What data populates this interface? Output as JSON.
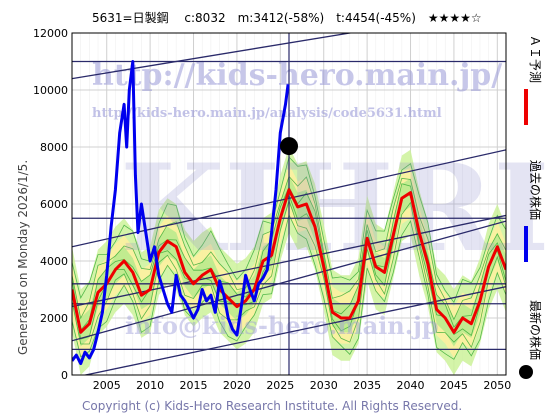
{
  "chart_data": {
    "type": "line",
    "title": "5631=日製鋼　 c:8032　m:3412(-58%)　t:4454(-45%)　★★★★☆",
    "ylabel": "Generated on Monday 2026/1/5.",
    "footer": "Copyright (c) Kids-Hero Research Institute. All Rights Reserved.",
    "watermark": {
      "url": "http://kids-hero.main.jp/",
      "analysis_url": "http://kids-hero.main.jp/analysis/code5631.html",
      "big": "KIHRI",
      "mail": "info@kids-hero.main.jp"
    },
    "xlim": [
      2001,
      2051
    ],
    "ylim": [
      0,
      12000
    ],
    "x_ticks": [
      2005,
      2010,
      2015,
      2020,
      2025,
      2030,
      2035,
      2040,
      2045,
      2050
    ],
    "y_ticks": [
      0,
      2000,
      4000,
      6000,
      8000,
      10000,
      12000
    ],
    "grid": true,
    "legend": [
      {
        "label": "最新の株価",
        "color": "#000000",
        "marker": "dot"
      },
      {
        "label": "過去の株価",
        "color": "#0000ee",
        "marker": "line"
      },
      {
        "label": "ＡＩ予測",
        "color": "#ee0000",
        "marker": "line"
      }
    ],
    "latest_point": {
      "x": 2026.0,
      "y": 8032
    },
    "horizontal_lines": [
      11000,
      5500,
      3200,
      2500,
      900
    ],
    "channel_lines": [
      {
        "x": [
          2001,
          2051
        ],
        "y": [
          10400,
          12900
        ]
      },
      {
        "x": [
          2001,
          2051
        ],
        "y": [
          4500,
          7900
        ]
      },
      {
        "x": [
          2001,
          2051
        ],
        "y": [
          2400,
          5600
        ]
      },
      {
        "x": [
          2001,
          2051
        ],
        "y": [
          1200,
          5400
        ]
      },
      {
        "x": [
          2001,
          2051
        ],
        "y": [
          -100,
          3100
        ]
      }
    ],
    "series": [
      {
        "name": "過去の株価",
        "color": "#0000ee",
        "x": [
          2001.0,
          2001.5,
          2002.0,
          2002.5,
          2003.0,
          2003.5,
          2004.0,
          2004.5,
          2005.0,
          2005.5,
          2006.0,
          2006.5,
          2007.0,
          2007.3,
          2007.6,
          2008.0,
          2008.3,
          2008.6,
          2009.0,
          2009.5,
          2010.0,
          2010.5,
          2011.0,
          2011.5,
          2012.0,
          2012.5,
          2013.0,
          2013.5,
          2014.0,
          2014.5,
          2015.0,
          2015.5,
          2016.0,
          2016.5,
          2017.0,
          2017.5,
          2018.0,
          2018.5,
          2019.0,
          2019.5,
          2020.0,
          2020.5,
          2021.0,
          2021.5,
          2022.0,
          2022.5,
          2023.0,
          2023.5,
          2024.0,
          2024.5,
          2025.0,
          2025.3,
          2025.6,
          2025.9
        ],
        "y": [
          500,
          700,
          400,
          800,
          600,
          900,
          1500,
          2200,
          3500,
          5200,
          6500,
          8500,
          9500,
          8000,
          10000,
          11000,
          7000,
          5000,
          6000,
          5000,
          4000,
          4500,
          3500,
          3000,
          2500,
          2200,
          3500,
          2800,
          2600,
          2300,
          2000,
          2300,
          3000,
          2600,
          2800,
          2200,
          3300,
          2800,
          2000,
          1600,
          1400,
          2400,
          3500,
          3000,
          2600,
          3200,
          3400,
          3700,
          5000,
          6500,
          8500,
          9000,
          9500,
          10200
        ]
      },
      {
        "name": "ＡＩ予測",
        "color": "#ee0000",
        "x": [
          2001,
          2002,
          2003,
          2004,
          2005,
          2006,
          2007,
          2008,
          2009,
          2010,
          2011,
          2012,
          2013,
          2014,
          2015,
          2016,
          2017,
          2018,
          2019,
          2020,
          2021,
          2022,
          2023,
          2024,
          2025,
          2026,
          2027,
          2028,
          2029,
          2030,
          2031,
          2032,
          2033,
          2034,
          2035,
          2036,
          2037,
          2038,
          2039,
          2040,
          2041,
          2042,
          2043,
          2044,
          2045,
          2046,
          2047,
          2048,
          2049,
          2050,
          2051
        ],
        "y": [
          3000,
          1500,
          1800,
          2900,
          3200,
          3700,
          4000,
          3600,
          2800,
          3000,
          4300,
          4700,
          4500,
          3600,
          3200,
          3500,
          3700,
          3000,
          2700,
          2400,
          2600,
          3000,
          4000,
          4200,
          5500,
          6500,
          5900,
          6000,
          5200,
          3800,
          2200,
          2000,
          2000,
          2600,
          4800,
          3800,
          3600,
          4900,
          6200,
          6400,
          5000,
          3900,
          2300,
          2000,
          1500,
          2000,
          1800,
          2600,
          3800,
          4500,
          3700
        ]
      }
    ]
  }
}
